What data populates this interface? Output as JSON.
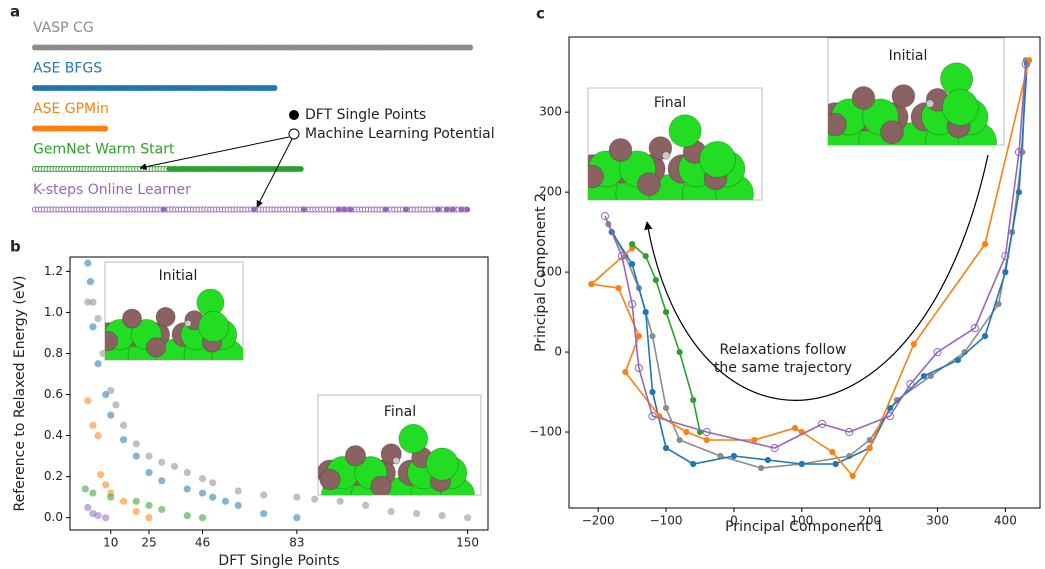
{
  "panel_labels": [
    "a",
    "b",
    "c"
  ],
  "panel_a": {
    "legend": [
      "DFT Single Points",
      "Machine Learning Potential"
    ],
    "rows": [
      {
        "label": "VASP CG",
        "color": "#8c8c8c",
        "dft": 150
      },
      {
        "label": "ASE BFGS",
        "color": "#1f77b4",
        "dft": 83
      },
      {
        "label": "ASE GPMin",
        "color": "#ff7f0e",
        "dft": 25
      },
      {
        "label": "GemNet Warm Start",
        "color": "#2ca02c",
        "ml": 46,
        "dft": 46
      },
      {
        "label": "K-steps Online Learner",
        "color": "#9467bd",
        "ml": 136,
        "dft_at": [
          44,
          75,
          92,
          104,
          106,
          108,
          120,
          127,
          138,
          141,
          143,
          146,
          148
        ]
      }
    ]
  },
  "chart_data": [
    {
      "type": "scatter",
      "xlabel": "DFT Single Points",
      "ylabel": "Reference to Relaxed Energy (eV)",
      "insets": [
        "Initial",
        "Final"
      ],
      "xlim": [
        -6,
        158
      ],
      "ylim": [
        -0.06,
        1.27
      ],
      "xticks": [
        10,
        25,
        46,
        83,
        150
      ],
      "yticks": [
        {
          "value": 0,
          "label": "0.0"
        },
        0.2,
        0.4,
        0.6,
        0.8,
        {
          "value": 1,
          "label": "1.0"
        },
        1.2
      ],
      "series": [
        {
          "name": "VASP CG",
          "color": "#8c8c8c",
          "x": [
            1,
            3,
            5,
            7,
            10,
            12,
            15,
            20,
            25,
            30,
            35,
            40,
            46,
            50,
            60,
            70,
            83,
            90,
            100,
            110,
            120,
            130,
            140,
            150
          ],
          "values": [
            1.05,
            1.05,
            0.97,
            0.8,
            0.62,
            0.55,
            0.45,
            0.36,
            0.3,
            0.27,
            0.25,
            0.22,
            0.19,
            0.17,
            0.13,
            0.11,
            0.1,
            0.09,
            0.08,
            0.06,
            0.03,
            0.02,
            0.01,
            0.0
          ]
        },
        {
          "name": "ASE BFGS",
          "color": "#1f77b4",
          "x": [
            1,
            2,
            3,
            5,
            8,
            10,
            15,
            20,
            25,
            30,
            40,
            46,
            50,
            55,
            60,
            70,
            83
          ],
          "values": [
            1.24,
            1.15,
            0.93,
            0.75,
            0.6,
            0.5,
            0.38,
            0.3,
            0.22,
            0.18,
            0.14,
            0.12,
            0.1,
            0.08,
            0.06,
            0.02,
            0.0
          ]
        },
        {
          "name": "ASE GPMin",
          "color": "#ff7f0e",
          "x": [
            1,
            3,
            5,
            6,
            8,
            10,
            15,
            20,
            25
          ],
          "values": [
            0.57,
            0.45,
            0.4,
            0.21,
            0.16,
            0.12,
            0.08,
            0.03,
            0.0
          ]
        },
        {
          "name": "GemNet Warm Start",
          "color": "#2ca02c",
          "x": [
            0,
            3,
            10,
            20,
            25,
            30,
            40,
            46
          ],
          "values": [
            0.14,
            0.12,
            0.1,
            0.08,
            0.06,
            0.04,
            0.01,
            0.0
          ]
        },
        {
          "name": "K-steps Online Learner",
          "color": "#9467bd",
          "x": [
            1,
            3,
            5,
            8
          ],
          "values": [
            0.05,
            0.02,
            0.01,
            0.0
          ]
        }
      ]
    },
    {
      "type": "line",
      "xlabel": "Principal Component 1",
      "ylabel": "Principal Component 2",
      "insets": [
        "Final",
        "Initial"
      ],
      "annotation": [
        "Relaxations follow",
        "the same trajectory"
      ],
      "xlim": [
        -243,
        451
      ],
      "ylim": [
        -195,
        394
      ],
      "xticks": [
        {
          "value": -200,
          "label": "−200"
        },
        {
          "value": -100,
          "label": "−100"
        },
        0,
        100,
        200,
        300,
        400
      ],
      "yticks": [
        {
          "value": -100,
          "label": "−100"
        },
        0,
        100,
        200,
        300
      ],
      "series": [
        {
          "name": "VASP CG",
          "color": "#8c8c8c",
          "marker": "filled",
          "x": [
            430,
            425,
            410,
            390,
            340,
            290,
            240,
            200,
            170,
            100,
            40,
            -20,
            -80,
            -100,
            -120,
            -140,
            -160,
            -185
          ],
          "values": [
            365,
            250,
            150,
            60,
            0,
            -30,
            -60,
            -110,
            -130,
            -140,
            -145,
            -130,
            -110,
            -70,
            20,
            80,
            120,
            160
          ]
        },
        {
          "name": "ASE BFGS",
          "color": "#1f77b4",
          "marker": "filled",
          "x": [
            432,
            420,
            400,
            370,
            330,
            280,
            230,
            200,
            150,
            100,
            50,
            0,
            -60,
            -100,
            -120,
            -130,
            -150,
            -180
          ],
          "values": [
            360,
            200,
            100,
            20,
            -10,
            -30,
            -70,
            -120,
            -140,
            -140,
            -135,
            -130,
            -140,
            -120,
            -50,
            50,
            110,
            150
          ]
        },
        {
          "name": "ASE GPMin",
          "color": "#ff7f0e",
          "marker": "filled",
          "x": [
            435,
            370,
            265,
            200,
            175,
            145,
            100,
            90,
            30,
            -40,
            -70,
            -110,
            -160,
            -140,
            -170,
            -210,
            -150
          ],
          "values": [
            365,
            135,
            10,
            -120,
            -155,
            -125,
            -100,
            -95,
            -110,
            -110,
            -100,
            -80,
            -25,
            20,
            80,
            85,
            130
          ]
        },
        {
          "name": "GemNet Warm Start",
          "color": "#2ca02c",
          "marker": "filled",
          "x": [
            -50,
            -60,
            -80,
            -100,
            -115,
            -130,
            -150
          ],
          "values": [
            -100,
            -60,
            0,
            50,
            90,
            120,
            135
          ]
        },
        {
          "name": "K-steps Online Learner",
          "color": "#9467bd",
          "marker": "open",
          "x": [
            430,
            420,
            400,
            355,
            300,
            260,
            230,
            170,
            130,
            60,
            -40,
            -120,
            -140,
            -150,
            -165,
            -190
          ],
          "values": [
            360,
            250,
            120,
            30,
            0,
            -40,
            -80,
            -100,
            -90,
            -120,
            -100,
            -80,
            -20,
            60,
            120,
            170
          ]
        }
      ]
    }
  ]
}
